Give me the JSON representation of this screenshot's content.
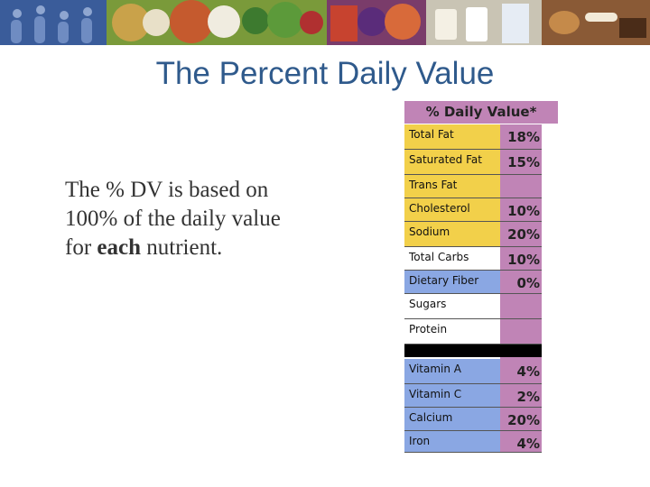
{
  "slide": {
    "title": "The Percent Daily Value",
    "body": {
      "line1": "The % DV is based on",
      "line2": "100% of the daily value",
      "line3_prefix": "for ",
      "line3_bold": "each",
      "line3_suffix": " nutrient."
    }
  },
  "dv_table": {
    "header": "% Daily Value*",
    "rows": [
      {
        "nutrient": "Total Fat",
        "percent": "18%",
        "color": "yellow"
      },
      {
        "nutrient": "Saturated Fat",
        "percent": "15%",
        "color": "yellow"
      },
      {
        "nutrient": "Trans Fat",
        "percent": "",
        "color": "yellow"
      },
      {
        "nutrient": "Cholesterol",
        "percent": "10%",
        "color": "yellow"
      },
      {
        "nutrient": "Sodium",
        "percent": "20%",
        "color": "yellow"
      },
      {
        "nutrient": "Total Carbs",
        "percent": "10%",
        "color": "white"
      },
      {
        "nutrient": "Dietary Fiber",
        "percent": "0%",
        "color": "blue"
      },
      {
        "nutrient": "Sugars",
        "percent": "",
        "color": "white"
      },
      {
        "nutrient": "Protein",
        "percent": "",
        "color": "white"
      },
      {
        "nutrient": "Vitamin A",
        "percent": "4%",
        "color": "blue"
      },
      {
        "nutrient": "Vitamin C",
        "percent": "2%",
        "color": "blue"
      },
      {
        "nutrient": "Calcium",
        "percent": "20%",
        "color": "blue"
      },
      {
        "nutrient": "Iron",
        "percent": "4%",
        "color": "blue"
      }
    ]
  },
  "colors": {
    "title": "#2f5a8c",
    "dv_column": "#c084b6",
    "limit_nutrients": "#f2d04a",
    "encouraged_nutrients": "#8aa7e3"
  },
  "banner": {
    "icons": [
      "silhouette-runners-icon",
      "food-collage-icon",
      "milk-carton-icon",
      "meat-icon"
    ]
  }
}
